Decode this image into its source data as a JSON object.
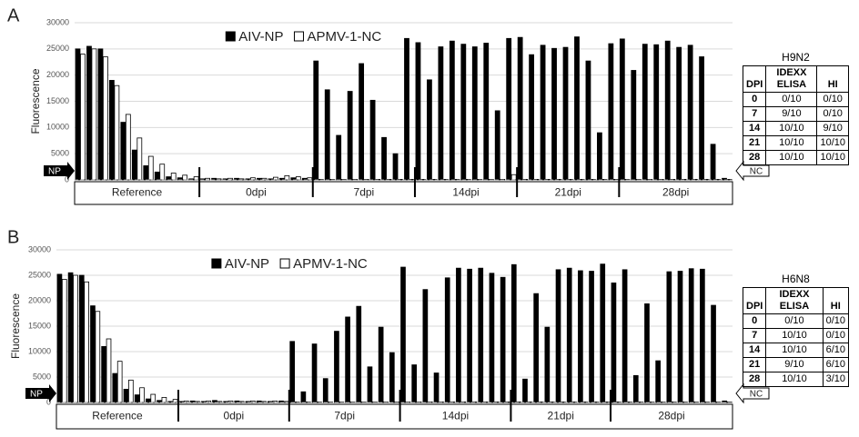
{
  "chart_data": [
    {
      "type": "bar",
      "panel": "A",
      "ylabel": "Fluorescence",
      "ylim": [
        0,
        30000
      ],
      "yticks": [
        0,
        5000,
        10000,
        15000,
        20000,
        25000,
        30000
      ],
      "grid": true,
      "legend": "upper center",
      "annotations": [
        "NP",
        "NC"
      ],
      "categories": [
        "Reference",
        "Reference",
        "Reference",
        "Reference",
        "Reference",
        "Reference",
        "Reference",
        "Reference",
        "Reference",
        "Reference",
        "Reference",
        "0dpi",
        "0dpi",
        "0dpi",
        "0dpi",
        "0dpi",
        "0dpi",
        "0dpi",
        "0dpi",
        "0dpi",
        "0dpi",
        "7dpi",
        "7dpi",
        "7dpi",
        "7dpi",
        "7dpi",
        "7dpi",
        "7dpi",
        "7dpi",
        "7dpi",
        "14dpi",
        "14dpi",
        "14dpi",
        "14dpi",
        "14dpi",
        "14dpi",
        "14dpi",
        "14dpi",
        "14dpi",
        "21dpi",
        "21dpi",
        "21dpi",
        "21dpi",
        "21dpi",
        "21dpi",
        "21dpi",
        "21dpi",
        "21dpi",
        "28dpi",
        "28dpi",
        "28dpi",
        "28dpi",
        "28dpi",
        "28dpi",
        "28dpi",
        "28dpi",
        "28dpi",
        "28dpi"
      ],
      "series": [
        {
          "name": "AIV-NP",
          "color": "#000000",
          "values": [
            25000,
            25500,
            25000,
            19000,
            11000,
            5700,
            2700,
            1500,
            600,
            400,
            200,
            200,
            300,
            200,
            300,
            200,
            300,
            200,
            300,
            400,
            300,
            22700,
            17200,
            8500,
            16900,
            22200,
            15200,
            8100,
            5000,
            27000,
            26200,
            19100,
            25400,
            26500,
            25900,
            25400,
            26100,
            13200,
            27000,
            27200,
            23900,
            25700,
            25100,
            25300,
            27300,
            22700,
            9000,
            26000,
            26900,
            20900,
            25900,
            25800,
            26500,
            25300,
            25700,
            23500,
            6800,
            300
          ]
        },
        {
          "name": "APMV-1-NC",
          "color": "#ffffff",
          "values": [
            24000,
            25000,
            23500,
            18000,
            12500,
            8000,
            4500,
            3000,
            1300,
            900,
            600,
            300,
            200,
            300,
            200,
            400,
            300,
            500,
            800,
            600,
            400,
            100,
            100,
            100,
            100,
            100,
            100,
            100,
            100,
            100,
            100,
            100,
            100,
            100,
            100,
            100,
            100,
            100,
            1000,
            100,
            100,
            100,
            100,
            100,
            100,
            100,
            100,
            100,
            100,
            100,
            100,
            100,
            100,
            100,
            100,
            100,
            100,
            100
          ]
        }
      ],
      "table": {
        "title": "H9N2",
        "header": [
          "DPI",
          "IDEXX ELISA",
          "HI"
        ],
        "rows": [
          [
            "0",
            "0/10",
            "0/10"
          ],
          [
            "7",
            "9/10",
            "0/10"
          ],
          [
            "14",
            "10/10",
            "9/10"
          ],
          [
            "21",
            "10/10",
            "10/10"
          ],
          [
            "28",
            "10/10",
            "10/10"
          ]
        ]
      }
    },
    {
      "type": "bar",
      "panel": "B",
      "ylabel": "Fluorescence",
      "ylim": [
        0,
        30000
      ],
      "yticks": [
        0,
        5000,
        10000,
        15000,
        20000,
        25000,
        30000
      ],
      "grid": true,
      "legend": "upper center",
      "annotations": [
        "NP",
        "NC"
      ],
      "categories": [
        "Reference",
        "Reference",
        "Reference",
        "Reference",
        "Reference",
        "Reference",
        "Reference",
        "Reference",
        "Reference",
        "Reference",
        "Reference",
        "0dpi",
        "0dpi",
        "0dpi",
        "0dpi",
        "0dpi",
        "0dpi",
        "0dpi",
        "0dpi",
        "0dpi",
        "0dpi",
        "7dpi",
        "7dpi",
        "7dpi",
        "7dpi",
        "7dpi",
        "7dpi",
        "7dpi",
        "7dpi",
        "7dpi",
        "7dpi",
        "14dpi",
        "14dpi",
        "14dpi",
        "14dpi",
        "14dpi",
        "14dpi",
        "14dpi",
        "14dpi",
        "14dpi",
        "14dpi",
        "21dpi",
        "21dpi",
        "21dpi",
        "21dpi",
        "21dpi",
        "21dpi",
        "21dpi",
        "21dpi",
        "21dpi",
        "28dpi",
        "28dpi",
        "28dpi",
        "28dpi",
        "28dpi",
        "28dpi",
        "28dpi",
        "28dpi",
        "28dpi",
        "28dpi",
        "28dpi"
      ],
      "series": [
        {
          "name": "AIV-NP",
          "color": "#000000",
          "values": [
            25200,
            25500,
            25000,
            19000,
            11000,
            5700,
            2600,
            1500,
            700,
            400,
            200,
            200,
            300,
            200,
            400,
            200,
            300,
            200,
            300,
            200,
            300,
            12000,
            2100,
            11500,
            4700,
            14000,
            16800,
            18900,
            7000,
            14800,
            9800,
            26600,
            7400,
            22200,
            5800,
            24500,
            26400,
            26200,
            26400,
            25400,
            24600,
            27100,
            4600,
            21400,
            14800,
            26100,
            26400,
            25900,
            25800,
            27200,
            23500,
            26100,
            5300,
            19400,
            8200,
            25700,
            25800,
            26300,
            26200,
            19100,
            300
          ]
        },
        {
          "name": "APMV-1-NC",
          "color": "#ffffff",
          "values": [
            24200,
            25000,
            23700,
            17900,
            12500,
            8100,
            4400,
            2900,
            1600,
            1000,
            600,
            300,
            200,
            300,
            200,
            300,
            200,
            300,
            200,
            300,
            200,
            100,
            100,
            100,
            100,
            100,
            100,
            100,
            100,
            100,
            100,
            100,
            100,
            100,
            100,
            100,
            100,
            100,
            100,
            100,
            100,
            100,
            100,
            100,
            100,
            100,
            100,
            100,
            100,
            100,
            100,
            100,
            100,
            100,
            100,
            100,
            100,
            100,
            100,
            100,
            100
          ]
        }
      ],
      "table": {
        "title": "H6N8",
        "header": [
          "DPI",
          "IDEXX ELISA",
          "HI"
        ],
        "rows": [
          [
            "0",
            "0/10",
            "0/10"
          ],
          [
            "7",
            "10/10",
            "0/10"
          ],
          [
            "14",
            "10/10",
            "6/10"
          ],
          [
            "21",
            "9/10",
            "6/10"
          ],
          [
            "28",
            "10/10",
            "3/10"
          ]
        ]
      }
    }
  ]
}
